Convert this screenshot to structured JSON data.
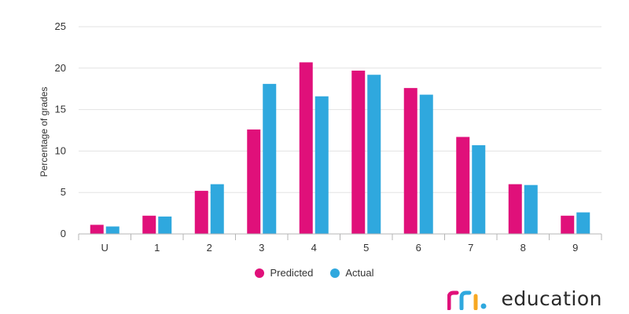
{
  "chart_data": {
    "type": "bar",
    "ylabel": "Percentage of grades",
    "xlabel": "",
    "ylim": [
      0,
      25
    ],
    "yticks": [
      0,
      5,
      10,
      15,
      20,
      25
    ],
    "grid": true,
    "legend_position": "bottom-center",
    "categories": [
      "U",
      "1",
      "2",
      "3",
      "4",
      "5",
      "6",
      "7",
      "8",
      "9"
    ],
    "series": [
      {
        "name": "Predicted",
        "color": "#e0107a",
        "values": [
          1.1,
          2.2,
          5.2,
          12.6,
          20.7,
          19.7,
          17.6,
          11.7,
          6.0,
          2.2
        ]
      },
      {
        "name": "Actual",
        "color": "#2fa8de",
        "values": [
          0.9,
          2.1,
          6.0,
          18.1,
          16.6,
          19.2,
          16.8,
          10.7,
          5.9,
          2.6
        ]
      }
    ]
  },
  "logo": {
    "text": "education",
    "mark_colors": [
      "#e0107a",
      "#2fa8de",
      "#f7a823",
      "#2fa8de"
    ]
  }
}
